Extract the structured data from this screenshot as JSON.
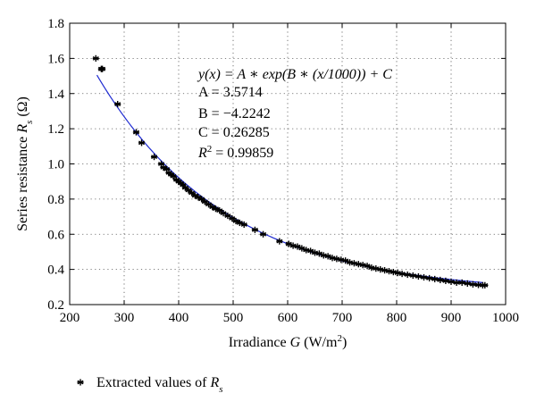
{
  "chart_data": {
    "type": "scatter",
    "title": "",
    "xlabel": {
      "prefix": "Irradiance ",
      "var": "G",
      "unit_pre": " (W/m",
      "unit_sup": "2",
      "unit_post": ")"
    },
    "ylabel": {
      "prefix": "Series resistance ",
      "var": "R",
      "sub": "s",
      "unit": " (Ω)"
    },
    "xlim": [
      200,
      1000
    ],
    "ylim": [
      0.2,
      1.8
    ],
    "xticks": [
      200,
      300,
      400,
      500,
      600,
      700,
      800,
      900,
      1000
    ],
    "yticks": [
      0.2,
      0.4,
      0.6,
      0.8,
      1.0,
      1.2,
      1.4,
      1.6,
      1.8
    ],
    "ytick_labels": [
      "0.2",
      "0.4",
      "0.6",
      "0.8",
      "1.0",
      "1.2",
      "1.4",
      "1.6",
      "1.8"
    ],
    "grid": true,
    "fit": {
      "A": 3.5714,
      "B": -4.2242,
      "C": 0.26285,
      "x_range": [
        250,
        960
      ],
      "color": "#1f2bd1",
      "annotation": {
        "equation": "y(x) = A ∗ exp(B ∗ (x/1000)) + C",
        "A_line": "A = 3.5714",
        "B_line": "B = −4.2242",
        "C_line": "C = 0.26285",
        "R2_line": {
          "lhs": "R",
          "sup": "2",
          "rhs": " = 0.99859"
        }
      }
    },
    "legend": {
      "position": "bottom-left",
      "text": "Extracted values of ",
      "var": "R",
      "sub": "s"
    },
    "series": [
      {
        "marker": "asterisk",
        "color": "#000000",
        "x": [
          248,
          258,
          260,
          288,
          322,
          332,
          355,
          368,
          372,
          378,
          382,
          386,
          390,
          396,
          400,
          404,
          408,
          412,
          418,
          424,
          430,
          436,
          442,
          448,
          455,
          462,
          468,
          475,
          482,
          490,
          498,
          505,
          512,
          520,
          540,
          555,
          585,
          602,
          610,
          618,
          626,
          634,
          642,
          650,
          658,
          666,
          674,
          682,
          690,
          698,
          706,
          714,
          722,
          730,
          738,
          746,
          754,
          762,
          770,
          778,
          786,
          794,
          802,
          810,
          820,
          830,
          840,
          850,
          860,
          870,
          880,
          890,
          900,
          910,
          920,
          930,
          940,
          950,
          958,
          962
        ],
        "y": [
          1.6,
          1.54,
          1.54,
          1.34,
          1.18,
          1.12,
          1.04,
          1.0,
          0.98,
          0.97,
          0.95,
          0.94,
          0.93,
          0.91,
          0.9,
          0.89,
          0.88,
          0.865,
          0.85,
          0.835,
          0.82,
          0.81,
          0.8,
          0.785,
          0.77,
          0.755,
          0.745,
          0.735,
          0.72,
          0.705,
          0.69,
          0.675,
          0.665,
          0.655,
          0.625,
          0.6,
          0.56,
          0.545,
          0.535,
          0.53,
          0.52,
          0.51,
          0.505,
          0.495,
          0.49,
          0.48,
          0.475,
          0.465,
          0.46,
          0.455,
          0.45,
          0.44,
          0.435,
          0.43,
          0.425,
          0.42,
          0.41,
          0.405,
          0.4,
          0.395,
          0.39,
          0.385,
          0.38,
          0.375,
          0.37,
          0.365,
          0.36,
          0.355,
          0.35,
          0.345,
          0.34,
          0.335,
          0.33,
          0.325,
          0.325,
          0.32,
          0.315,
          0.312,
          0.31,
          0.31
        ]
      }
    ]
  }
}
